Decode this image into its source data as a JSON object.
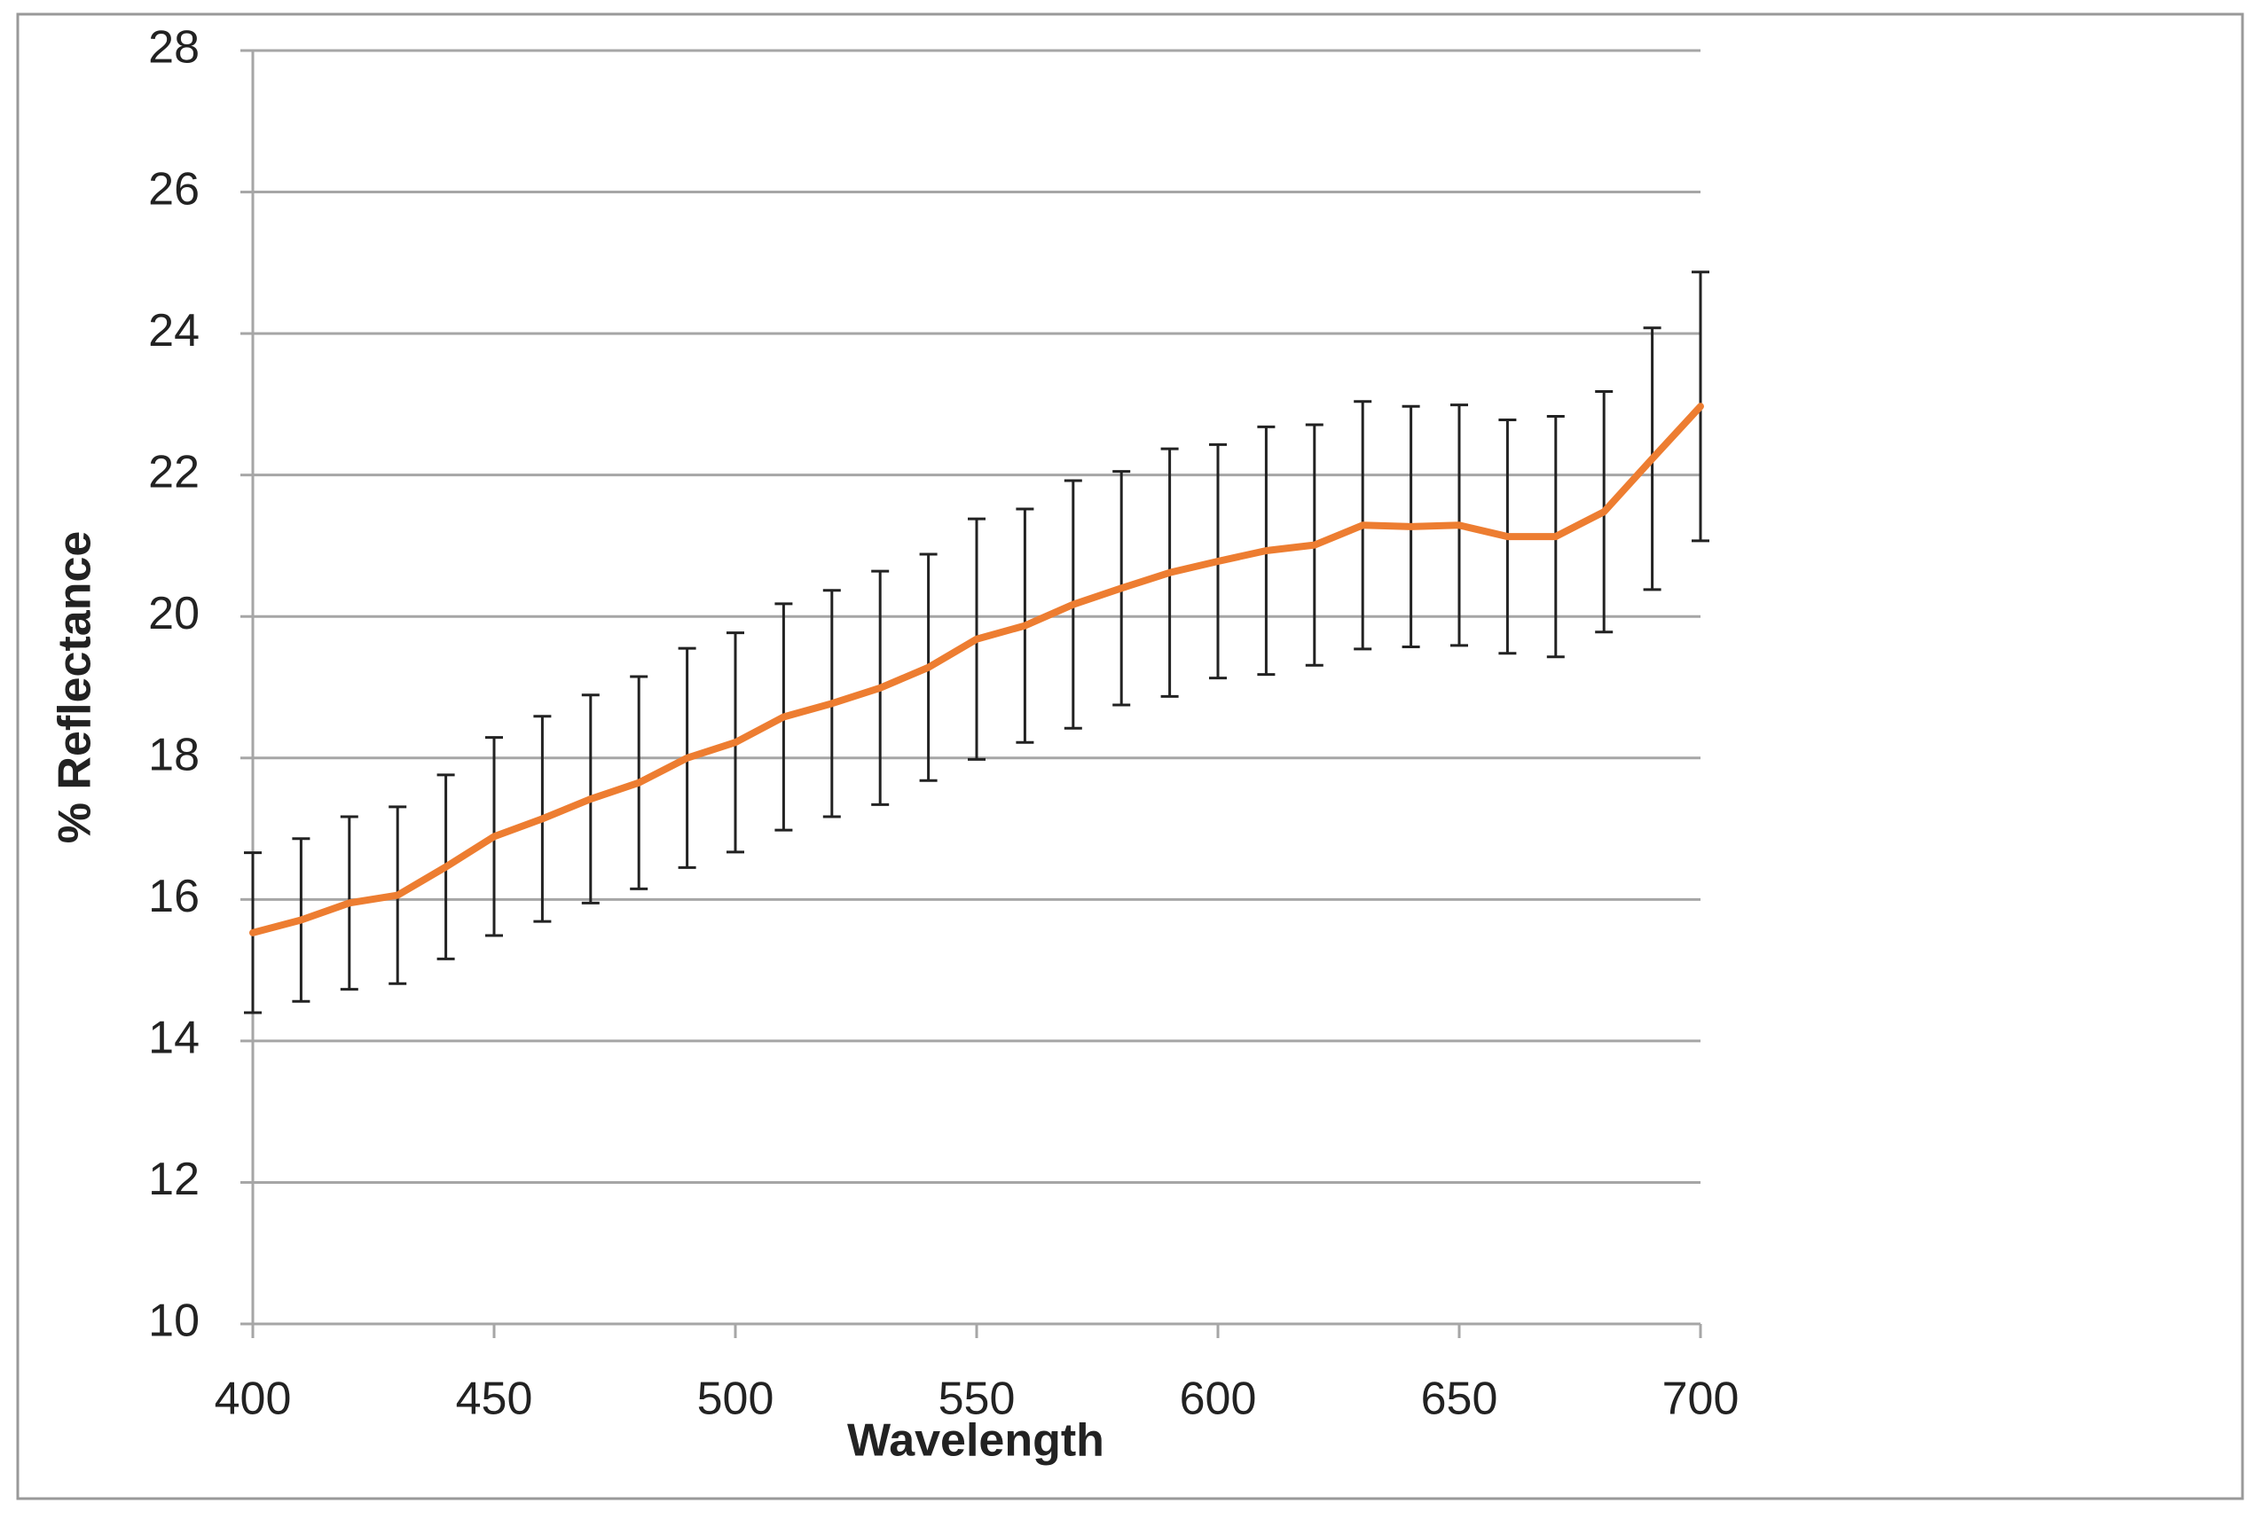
{
  "chart_data": {
    "type": "line",
    "x_label": "Wavelength",
    "y_label": "% Reflectance",
    "x": [
      400,
      410,
      420,
      430,
      440,
      450,
      460,
      470,
      480,
      490,
      500,
      510,
      520,
      530,
      540,
      550,
      560,
      570,
      580,
      590,
      600,
      610,
      620,
      630,
      640,
      650,
      660,
      670,
      680,
      690,
      700
    ],
    "values": [
      15.53,
      15.71,
      15.95,
      16.06,
      16.46,
      16.89,
      17.14,
      17.42,
      17.65,
      18.0,
      18.22,
      18.58,
      18.77,
      18.99,
      19.28,
      19.68,
      19.87,
      20.17,
      20.4,
      20.62,
      20.78,
      20.93,
      21.01,
      21.29,
      21.27,
      21.29,
      21.13,
      21.13,
      21.48,
      22.23,
      22.97
    ],
    "errors": [
      1.13,
      1.15,
      1.22,
      1.25,
      1.3,
      1.4,
      1.45,
      1.47,
      1.5,
      1.55,
      1.55,
      1.6,
      1.6,
      1.65,
      1.6,
      1.7,
      1.65,
      1.75,
      1.65,
      1.75,
      1.65,
      1.75,
      1.7,
      1.75,
      1.7,
      1.7,
      1.65,
      1.7,
      1.7,
      1.85,
      1.9
    ],
    "color": "#ed7d31",
    "error_color": "#222222",
    "xlim": [
      400,
      700
    ],
    "xticks": [
      400,
      450,
      500,
      550,
      600,
      650,
      700
    ],
    "ylim": [
      10,
      28
    ],
    "yticks": [
      10,
      12,
      14,
      16,
      18,
      20,
      22,
      24,
      26,
      28
    ],
    "grid": true
  }
}
